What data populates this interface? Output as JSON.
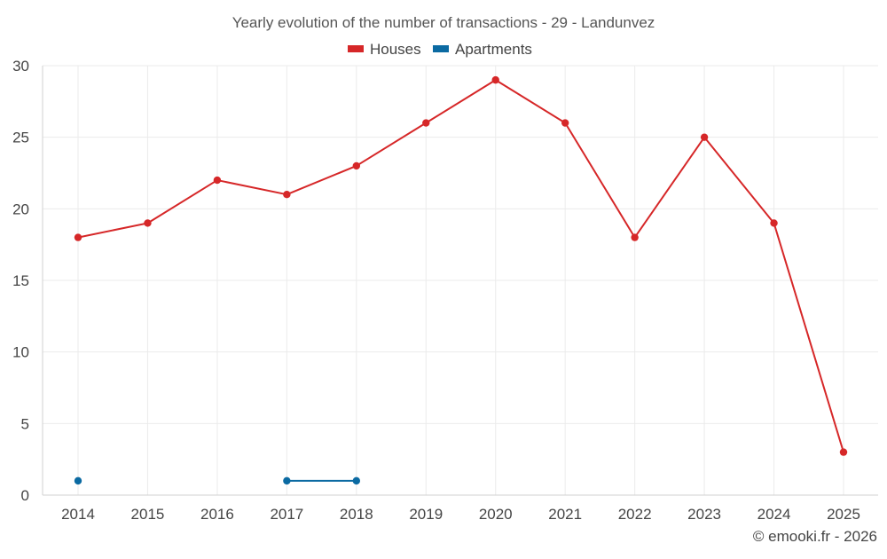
{
  "chart_data": {
    "type": "line",
    "title": "Yearly evolution of the number of transactions - 29 - Landunvez",
    "xlabel": "",
    "ylabel": "",
    "categories": [
      "2014",
      "2015",
      "2016",
      "2017",
      "2018",
      "2019",
      "2020",
      "2021",
      "2022",
      "2023",
      "2024",
      "2025"
    ],
    "ylim": [
      0,
      30
    ],
    "yticks": [
      0,
      5,
      10,
      15,
      20,
      25,
      30
    ],
    "grid": true,
    "legend": "top-center",
    "series": [
      {
        "name": "Houses",
        "color": "#d62728",
        "values": [
          18,
          19,
          22,
          21,
          23,
          26,
          29,
          26,
          18,
          25,
          19,
          3
        ]
      },
      {
        "name": "Apartments",
        "color": "#0b6aa2",
        "values": [
          1,
          null,
          null,
          1,
          1,
          null,
          null,
          null,
          null,
          null,
          null,
          null
        ]
      }
    ],
    "footer": "© emooki.fr - 2026"
  }
}
